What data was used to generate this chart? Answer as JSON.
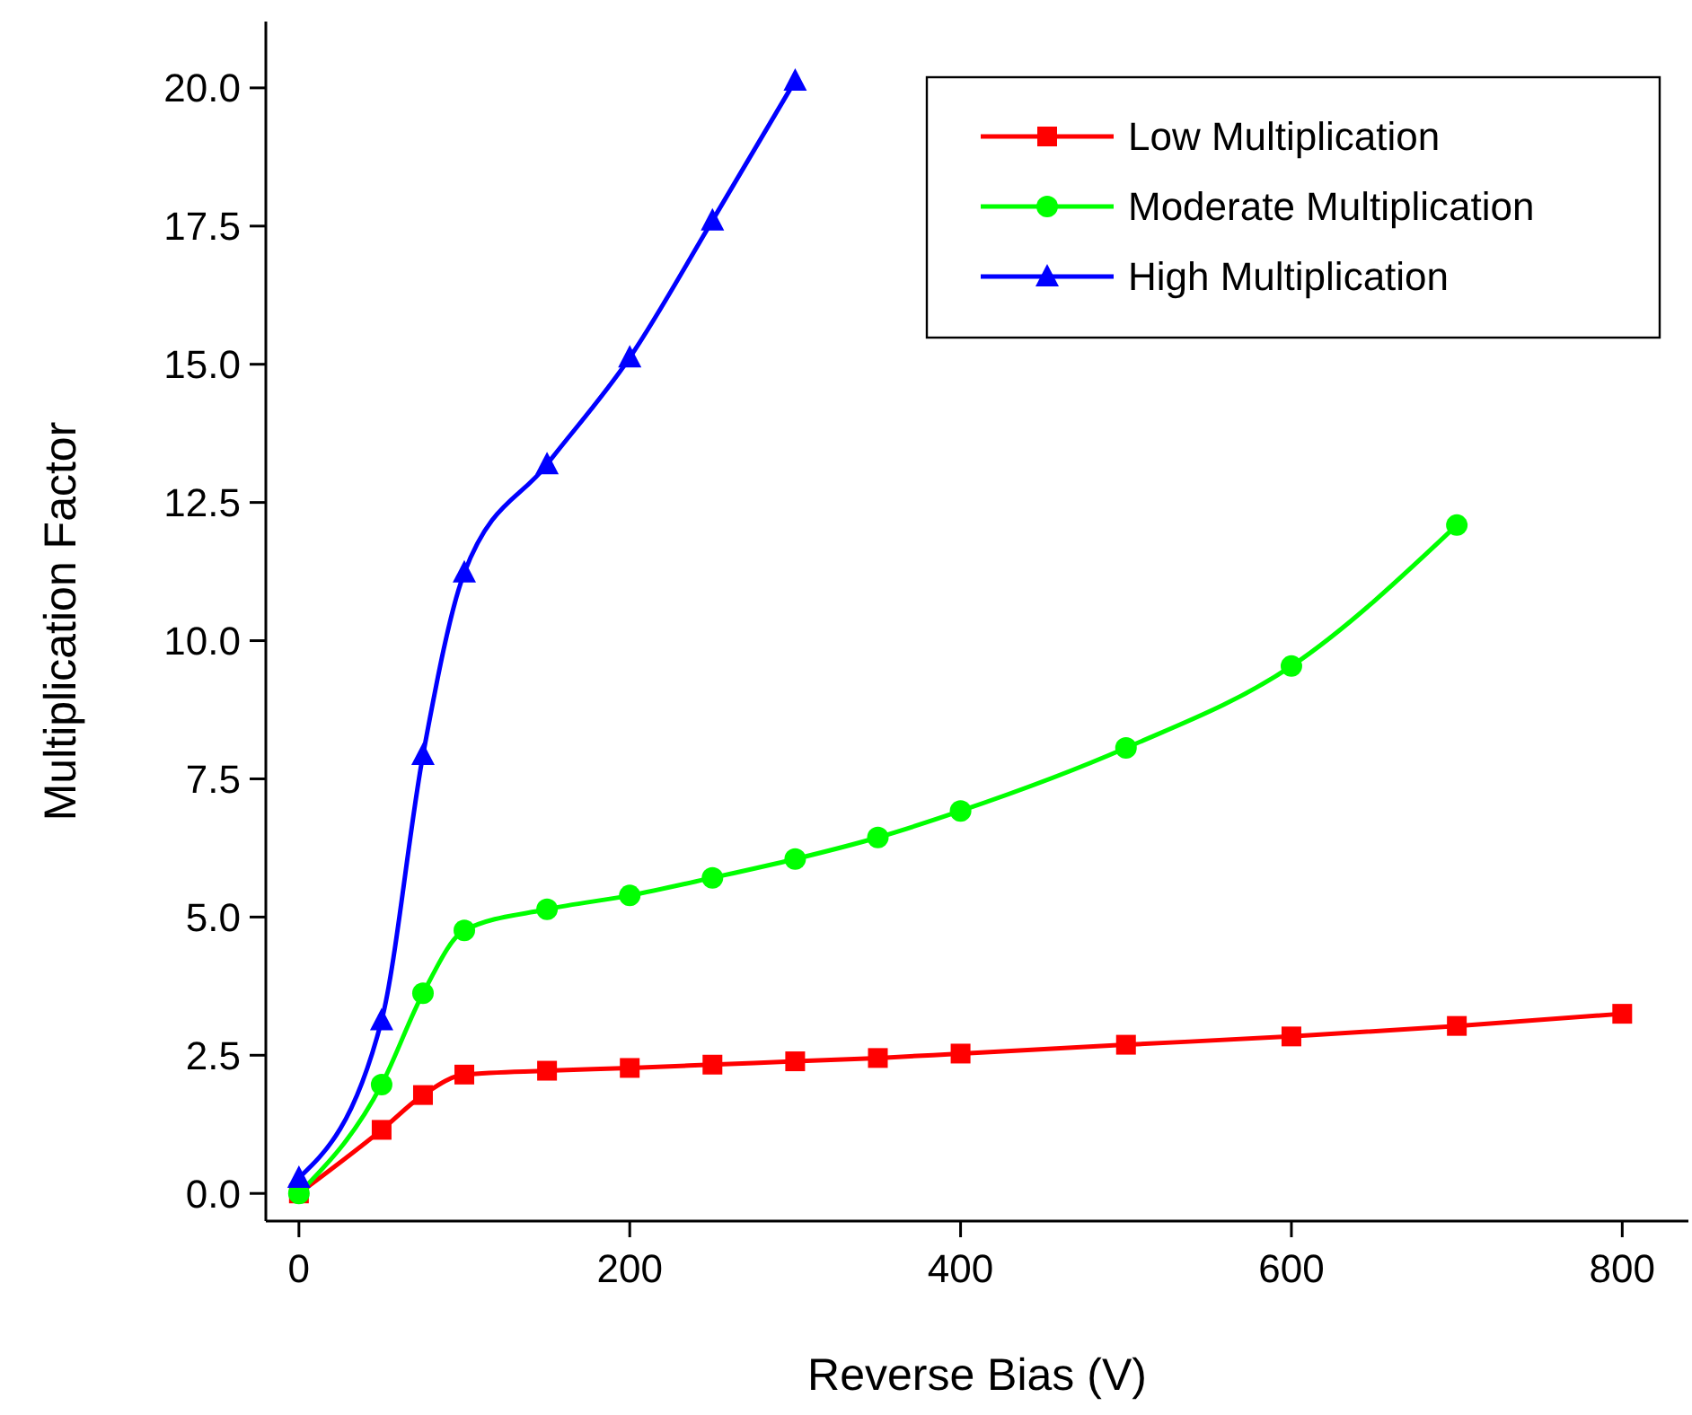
{
  "chart_data": {
    "type": "line",
    "xlabel": "Reverse Bias (V)",
    "ylabel": "Multiplication Factor",
    "xlim": [
      -20,
      840
    ],
    "ylim": [
      -0.5,
      21.2
    ],
    "xticks": [
      0,
      200,
      400,
      600,
      800
    ],
    "yticks": [
      {
        "value": 0,
        "label": "0.0"
      },
      2.5,
      {
        "value": 5,
        "label": "5.0"
      },
      7.5,
      {
        "value": 10,
        "label": "10.0"
      },
      12.5,
      {
        "value": 15,
        "label": "15.0"
      },
      17.5,
      {
        "value": 20,
        "label": "20.0"
      }
    ],
    "legend": "top right",
    "line_style": "solid",
    "grid": false,
    "series": [
      {
        "name": "Low Multiplication",
        "color": "#ff0000",
        "marker": "square",
        "x": [
          0,
          50,
          75,
          100,
          150,
          200,
          250,
          300,
          350,
          400,
          500,
          600,
          700,
          800
        ],
        "values": [
          0,
          1.15,
          1.78,
          2.15,
          2.22,
          2.27,
          2.33,
          2.39,
          2.45,
          2.53,
          2.69,
          2.84,
          3.03,
          3.25
        ]
      },
      {
        "name": "Moderate Multiplication",
        "color": "#00ff00",
        "marker": "circle",
        "x": [
          0,
          50,
          75,
          100,
          150,
          200,
          250,
          300,
          350,
          400,
          500,
          600,
          700
        ],
        "values": [
          0,
          1.97,
          3.62,
          4.76,
          5.14,
          5.39,
          5.71,
          6.05,
          6.44,
          6.92,
          8.06,
          9.54,
          12.09
        ]
      },
      {
        "name": "High Multiplication",
        "color": "#0000ff",
        "marker": "triangle",
        "x": [
          0,
          50,
          75,
          100,
          150,
          200,
          250,
          300
        ],
        "values": [
          0.28,
          3.13,
          7.93,
          11.23,
          13.19,
          15.12,
          17.6,
          20.13
        ]
      }
    ]
  }
}
